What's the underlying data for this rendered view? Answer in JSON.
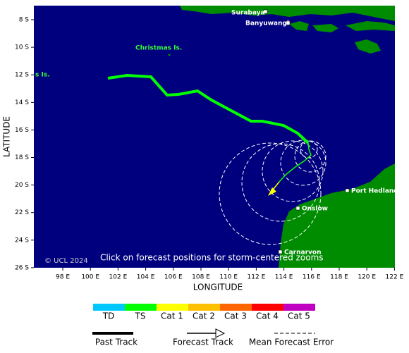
{
  "map": {
    "lat_ticks": [
      "8 S",
      "10 S",
      "12 S",
      "14 S",
      "16 S",
      "18 S",
      "20 S",
      "22 S",
      "24 S",
      "26 S"
    ],
    "lon_ticks": [
      "98 E",
      "100 E",
      "102 E",
      "104 E",
      "106 E",
      "108 E",
      "110 E",
      "112 E",
      "114 E",
      "116 E",
      "118 E",
      "120 E",
      "122 E"
    ],
    "y_axis_title": "LATITUDE",
    "x_axis_title": "LONGITUDE",
    "places": [
      "Surabaya",
      "Banyuwangi",
      "Christmas Is.",
      "s Is.",
      "Port Hedland",
      "Onslow",
      "Carnarvon"
    ],
    "copyright": "© UCL 2024",
    "hint": "Click on forecast positions for storm-centered zooms"
  },
  "legend": {
    "categories": [
      "TD",
      "TS",
      "Cat 1",
      "Cat 2",
      "Cat 3",
      "Cat 4",
      "Cat 5"
    ],
    "lines": [
      "Past Track",
      "Forecast Track",
      "Mean Forecast Error"
    ]
  }
}
